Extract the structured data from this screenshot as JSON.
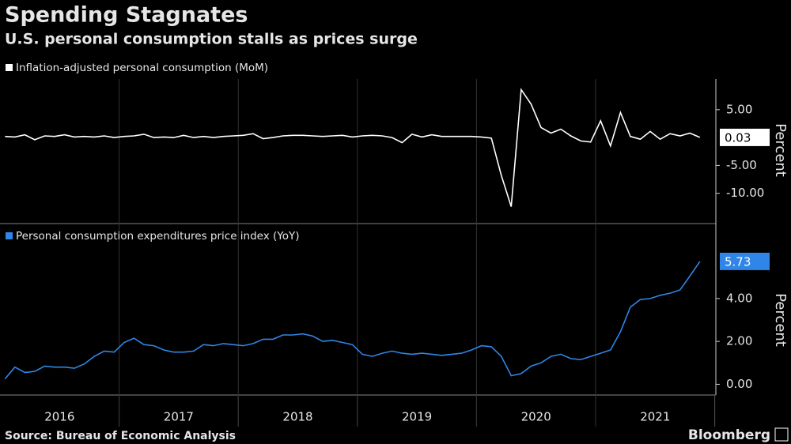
{
  "title": "Spending Stagnates",
  "subtitle": "U.S. personal consumption stalls as prices surge",
  "source": "Source: Bureau of Economic Analysis",
  "brand": "Bloomberg",
  "years": [
    "2016",
    "2017",
    "2018",
    "2019",
    "2020",
    "2021"
  ],
  "chart_data": [
    {
      "type": "line",
      "ylabel": "Percent",
      "series": [
        {
          "name": "Inflation-adjusted personal consumption (MoM)",
          "color": "#ffffff",
          "values": [
            0.2,
            0.1,
            0.5,
            -0.4,
            0.3,
            0.2,
            0.5,
            0.1,
            0.2,
            0.1,
            0.3,
            0.0,
            0.2,
            0.3,
            0.6,
            0.0,
            0.1,
            0.0,
            0.4,
            0.0,
            0.2,
            0.0,
            0.2,
            0.3,
            0.4,
            0.7,
            -0.2,
            0.0,
            0.3,
            0.4,
            0.4,
            0.3,
            0.2,
            0.3,
            0.4,
            0.1,
            0.3,
            0.4,
            0.3,
            0.0,
            -0.9,
            0.6,
            0.1,
            0.5,
            0.2,
            0.2,
            0.2,
            0.2,
            0.1,
            -0.1,
            -6.8,
            -12.4,
            8.6,
            6.0,
            1.8,
            0.8,
            1.5,
            0.3,
            -0.6,
            -0.8,
            3.0,
            -1.5,
            4.5,
            0.2,
            -0.3,
            1.1,
            -0.3,
            0.7,
            0.3,
            0.8,
            0.03
          ]
        }
      ],
      "ylim": [
        -15,
        10.5
      ],
      "yticks": [
        {
          "value": 5,
          "label": "5.00"
        },
        {
          "value": -5,
          "label": "-5.00"
        },
        {
          "value": -10,
          "label": "-10.00"
        }
      ]
    },
    {
      "type": "line",
      "ylabel": "Percent",
      "series": [
        {
          "name": "Personal consumption expenditures price index (YoY)",
          "color": "#2f86e8",
          "values": [
            0.25,
            0.8,
            0.55,
            0.6,
            0.85,
            0.8,
            0.8,
            0.75,
            0.95,
            1.3,
            1.55,
            1.5,
            1.95,
            2.15,
            1.85,
            1.8,
            1.6,
            1.5,
            1.5,
            1.55,
            1.85,
            1.8,
            1.9,
            1.85,
            1.8,
            1.9,
            2.1,
            2.1,
            2.3,
            2.3,
            2.35,
            2.25,
            2.0,
            2.05,
            1.95,
            1.85,
            1.4,
            1.3,
            1.45,
            1.55,
            1.45,
            1.4,
            1.45,
            1.4,
            1.35,
            1.4,
            1.45,
            1.6,
            1.8,
            1.75,
            1.3,
            0.4,
            0.5,
            0.85,
            1.0,
            1.3,
            1.4,
            1.2,
            1.15,
            1.3,
            1.45,
            1.6,
            2.45,
            3.6,
            3.95,
            4.0,
            4.15,
            4.25,
            4.4,
            5.05,
            5.73
          ]
        }
      ],
      "ylim": [
        -0.5,
        6.5
      ],
      "yticks": [
        {
          "value": 0,
          "label": "0.00"
        },
        {
          "value": 2,
          "label": "2.00"
        },
        {
          "value": 4,
          "label": "4.00"
        }
      ]
    }
  ]
}
